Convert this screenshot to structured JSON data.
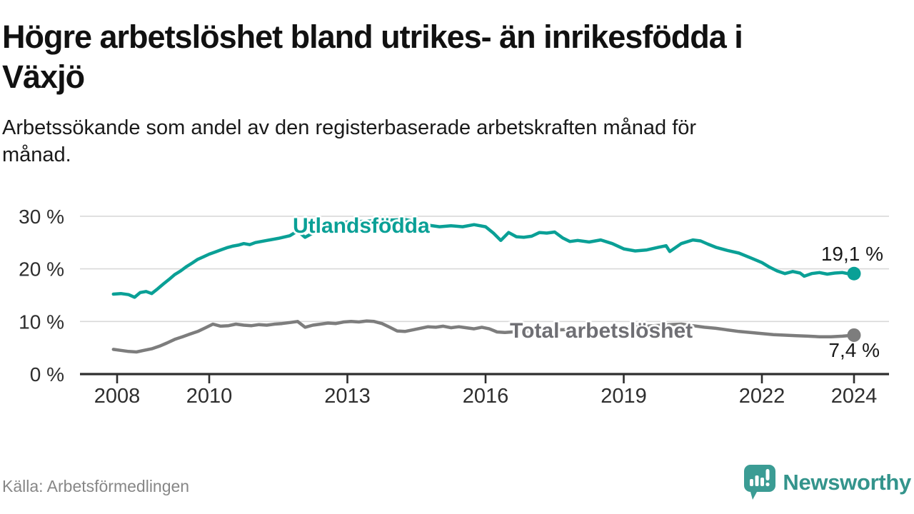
{
  "title_lines": [
    "Högre arbetslöshet bland utrikes- än inrikesfödda i",
    "Växjö"
  ],
  "subtitle_lines": [
    "Arbetssökande som andel av den registerbaserade arbetskraften månad för",
    "månad."
  ],
  "source": "Källa: Arbetsförmedlingen",
  "branding": {
    "name": "Newsworthy",
    "logo_icon": "speech-bubble-bar-chart-icon",
    "color": "#34948c"
  },
  "colors": {
    "accent_teal": "#0aa096",
    "line_gray": "#7d7d7d",
    "label_gray": "#6f6f74",
    "grid": "#d9d9d9",
    "axis": "#2e2e2e",
    "text_dark": "#111111",
    "source_gray": "#878787"
  },
  "chart_data": {
    "type": "line",
    "title": "Högre arbetslöshet bland utrikes- än inrikesfödda i Växjö",
    "subtitle": "Arbetssökande som andel av den registerbaserade arbetskraften månad för månad.",
    "xlabel": "",
    "ylabel": "",
    "grid": "horizontal",
    "legend_position": "inline-labels",
    "x_axis": {
      "ticks": [
        2008,
        2010,
        2013,
        2016,
        2019,
        2022,
        2024
      ],
      "range": [
        2007.2,
        2024.8
      ]
    },
    "y_axis": {
      "tick_values": [
        0,
        10,
        20,
        30
      ],
      "tick_labels": [
        "0 %",
        "10 %",
        "20 %",
        "30 %"
      ],
      "unit": "%",
      "range": [
        0,
        31
      ]
    },
    "series": [
      {
        "name": "Utlandsfödda",
        "color": "#0aa096",
        "end_label": "19,1 %",
        "end_value": 19.1,
        "points": [
          [
            2007.92,
            15.2
          ],
          [
            2008.08,
            15.3
          ],
          [
            2008.25,
            15.1
          ],
          [
            2008.38,
            14.6
          ],
          [
            2008.5,
            15.5
          ],
          [
            2008.63,
            15.7
          ],
          [
            2008.75,
            15.3
          ],
          [
            2008.88,
            16.2
          ],
          [
            2009.0,
            17.1
          ],
          [
            2009.13,
            18.0
          ],
          [
            2009.25,
            18.9
          ],
          [
            2009.38,
            19.6
          ],
          [
            2009.5,
            20.4
          ],
          [
            2009.63,
            21.1
          ],
          [
            2009.75,
            21.8
          ],
          [
            2009.88,
            22.3
          ],
          [
            2010.0,
            22.8
          ],
          [
            2010.13,
            23.2
          ],
          [
            2010.25,
            23.6
          ],
          [
            2010.38,
            24.0
          ],
          [
            2010.5,
            24.3
          ],
          [
            2010.63,
            24.5
          ],
          [
            2010.75,
            24.8
          ],
          [
            2010.88,
            24.6
          ],
          [
            2011.0,
            25.0
          ],
          [
            2011.25,
            25.4
          ],
          [
            2011.5,
            25.8
          ],
          [
            2011.75,
            26.3
          ],
          [
            2011.92,
            27.2
          ],
          [
            2012.08,
            26.0
          ],
          [
            2012.25,
            26.8
          ],
          [
            2012.5,
            27.8
          ],
          [
            2012.67,
            28.4
          ],
          [
            2012.83,
            28.7
          ],
          [
            2013.0,
            28.9
          ],
          [
            2013.25,
            29.0
          ],
          [
            2013.5,
            29.1
          ],
          [
            2013.75,
            29.2
          ],
          [
            2014.0,
            29.3
          ],
          [
            2014.25,
            29.4
          ],
          [
            2014.5,
            28.9
          ],
          [
            2014.75,
            28.3
          ],
          [
            2015.0,
            28.0
          ],
          [
            2015.25,
            28.2
          ],
          [
            2015.5,
            28.0
          ],
          [
            2015.75,
            28.4
          ],
          [
            2016.0,
            28.0
          ],
          [
            2016.17,
            26.8
          ],
          [
            2016.33,
            25.4
          ],
          [
            2016.5,
            26.9
          ],
          [
            2016.67,
            26.1
          ],
          [
            2016.83,
            26.0
          ],
          [
            2017.0,
            26.2
          ],
          [
            2017.17,
            26.9
          ],
          [
            2017.33,
            26.8
          ],
          [
            2017.5,
            27.0
          ],
          [
            2017.67,
            25.9
          ],
          [
            2017.83,
            25.2
          ],
          [
            2018.0,
            25.4
          ],
          [
            2018.25,
            25.1
          ],
          [
            2018.5,
            25.5
          ],
          [
            2018.75,
            24.8
          ],
          [
            2019.0,
            23.8
          ],
          [
            2019.25,
            23.4
          ],
          [
            2019.5,
            23.6
          ],
          [
            2019.75,
            24.1
          ],
          [
            2019.92,
            24.4
          ],
          [
            2020.0,
            23.3
          ],
          [
            2020.25,
            24.8
          ],
          [
            2020.5,
            25.5
          ],
          [
            2020.67,
            25.3
          ],
          [
            2020.83,
            24.7
          ],
          [
            2021.0,
            24.1
          ],
          [
            2021.25,
            23.5
          ],
          [
            2021.5,
            23.0
          ],
          [
            2021.75,
            22.1
          ],
          [
            2022.0,
            21.2
          ],
          [
            2022.17,
            20.3
          ],
          [
            2022.33,
            19.6
          ],
          [
            2022.5,
            19.1
          ],
          [
            2022.67,
            19.5
          ],
          [
            2022.83,
            19.2
          ],
          [
            2022.92,
            18.6
          ],
          [
            2023.08,
            19.1
          ],
          [
            2023.25,
            19.3
          ],
          [
            2023.42,
            19.0
          ],
          [
            2023.58,
            19.2
          ],
          [
            2023.75,
            19.3
          ],
          [
            2023.92,
            19.0
          ],
          [
            2024.0,
            19.1
          ]
        ]
      },
      {
        "name": "Total arbetslöshet",
        "color": "#7d7d7d",
        "end_label": "7,4 %",
        "end_value": 7.4,
        "points": [
          [
            2007.92,
            4.7
          ],
          [
            2008.08,
            4.5
          ],
          [
            2008.25,
            4.3
          ],
          [
            2008.42,
            4.2
          ],
          [
            2008.58,
            4.5
          ],
          [
            2008.75,
            4.8
          ],
          [
            2008.92,
            5.3
          ],
          [
            2009.08,
            5.9
          ],
          [
            2009.25,
            6.6
          ],
          [
            2009.42,
            7.1
          ],
          [
            2009.58,
            7.6
          ],
          [
            2009.75,
            8.1
          ],
          [
            2009.92,
            8.8
          ],
          [
            2010.08,
            9.5
          ],
          [
            2010.25,
            9.1
          ],
          [
            2010.42,
            9.2
          ],
          [
            2010.58,
            9.5
          ],
          [
            2010.75,
            9.3
          ],
          [
            2010.92,
            9.2
          ],
          [
            2011.08,
            9.4
          ],
          [
            2011.25,
            9.3
          ],
          [
            2011.42,
            9.5
          ],
          [
            2011.58,
            9.6
          ],
          [
            2011.75,
            9.8
          ],
          [
            2011.92,
            10.0
          ],
          [
            2012.08,
            8.9
          ],
          [
            2012.25,
            9.3
          ],
          [
            2012.42,
            9.5
          ],
          [
            2012.58,
            9.7
          ],
          [
            2012.75,
            9.6
          ],
          [
            2012.92,
            9.9
          ],
          [
            2013.08,
            10.0
          ],
          [
            2013.25,
            9.9
          ],
          [
            2013.42,
            10.1
          ],
          [
            2013.58,
            10.0
          ],
          [
            2013.75,
            9.6
          ],
          [
            2013.92,
            8.9
          ],
          [
            2014.08,
            8.2
          ],
          [
            2014.25,
            8.1
          ],
          [
            2014.42,
            8.4
          ],
          [
            2014.58,
            8.7
          ],
          [
            2014.75,
            9.0
          ],
          [
            2014.92,
            8.9
          ],
          [
            2015.08,
            9.1
          ],
          [
            2015.25,
            8.8
          ],
          [
            2015.42,
            9.0
          ],
          [
            2015.58,
            8.8
          ],
          [
            2015.75,
            8.6
          ],
          [
            2015.92,
            8.9
          ],
          [
            2016.08,
            8.6
          ],
          [
            2016.25,
            8.0
          ],
          [
            2016.42,
            7.9
          ],
          [
            2016.58,
            8.0
          ],
          [
            2016.83,
            8.1
          ],
          [
            2017.0,
            8.2
          ],
          [
            2017.5,
            8.4
          ],
          [
            2018.0,
            8.5
          ],
          [
            2018.5,
            8.6
          ],
          [
            2019.0,
            8.8
          ],
          [
            2019.5,
            9.1
          ],
          [
            2019.83,
            9.3
          ],
          [
            2020.0,
            9.4
          ],
          [
            2020.25,
            9.5
          ],
          [
            2020.5,
            9.2
          ],
          [
            2020.75,
            8.9
          ],
          [
            2021.0,
            8.7
          ],
          [
            2021.25,
            8.4
          ],
          [
            2021.5,
            8.1
          ],
          [
            2021.75,
            7.9
          ],
          [
            2022.0,
            7.7
          ],
          [
            2022.25,
            7.5
          ],
          [
            2022.5,
            7.4
          ],
          [
            2022.75,
            7.3
          ],
          [
            2023.0,
            7.2
          ],
          [
            2023.25,
            7.1
          ],
          [
            2023.5,
            7.1
          ],
          [
            2023.75,
            7.2
          ],
          [
            2024.0,
            7.4
          ]
        ]
      }
    ]
  }
}
